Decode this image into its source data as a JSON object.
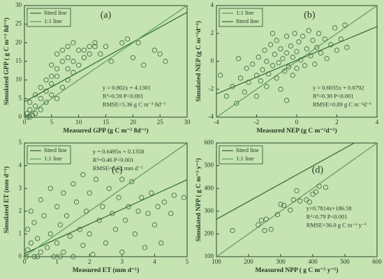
{
  "chart_data": [
    {
      "type": "scatter",
      "panel_label": "(a)",
      "xlabel": "Measured GPP (g C m⁻² 8d⁻¹)",
      "ylabel": "Simulated GPP ( g C m⁻² 8d⁻¹)",
      "xlim": [
        0,
        30
      ],
      "xticks": [
        0,
        5,
        10,
        15,
        20,
        25,
        30
      ],
      "ylim": [
        0,
        30
      ],
      "yticks": [
        0,
        5,
        10,
        15,
        20,
        25,
        30
      ],
      "point_color": "#35613a",
      "x": [
        0.5,
        1,
        1,
        1.5,
        2,
        2,
        3,
        3,
        4,
        4,
        5,
        5,
        5,
        6,
        6,
        6,
        7,
        7,
        7,
        8,
        8,
        8,
        9,
        9,
        10,
        10,
        11,
        12,
        12,
        13,
        14,
        15,
        16,
        18,
        19,
        20,
        21,
        22,
        24,
        25,
        26,
        0.5,
        1,
        2,
        3,
        4,
        5,
        6,
        8,
        9,
        11,
        13
      ],
      "values": [
        1,
        2,
        4,
        0.5,
        3,
        6,
        5,
        8,
        4,
        10,
        6,
        11,
        14,
        5,
        13,
        17,
        8,
        15,
        18,
        10,
        16,
        19,
        12,
        20,
        14,
        18,
        16,
        17,
        19,
        20,
        17,
        19,
        15,
        20,
        21,
        16,
        20,
        14,
        18,
        17,
        15,
        0,
        0,
        1,
        2,
        7,
        9,
        11,
        13,
        15,
        18,
        19
      ],
      "series": [
        {
          "name": "fitted line",
          "color": "#2c6a2c",
          "slope": 0.802,
          "intercept": 4.1301
        },
        {
          "name": "1:1 line",
          "color": "#5c9c5c"
        }
      ],
      "annotations": [
        "y = 0.802x + 4.1301",
        "R²=0.59  P<0.001",
        "RMSE=5.36 g C m⁻² 8d⁻¹"
      ]
    },
    {
      "type": "scatter",
      "panel_label": "(b)",
      "xlabel": "Measured NEP (g C m⁻²d⁻¹)",
      "ylabel": "Simulated NEP (g C m⁻²d⁻¹)",
      "xlim": [
        -4,
        4
      ],
      "xticks": [
        -4,
        -2,
        0,
        2,
        4
      ],
      "ylim": [
        -4,
        4
      ],
      "yticks": [
        -4,
        -2,
        0,
        2,
        4
      ],
      "point_color": "#35613a",
      "x": [
        -3.5,
        -3.2,
        -3,
        -2.8,
        -2.6,
        -2.5,
        -2.4,
        -2.2,
        -2,
        -2,
        -1.9,
        -1.8,
        -1.7,
        -1.6,
        -1.5,
        -1.5,
        -1.4,
        -1.3,
        -1.2,
        -1.1,
        -1,
        -1,
        -0.9,
        -0.8,
        -0.8,
        -0.7,
        -0.6,
        -0.5,
        -0.5,
        -0.4,
        -0.3,
        -0.2,
        -0.2,
        -0.1,
        0,
        0,
        0.1,
        0.2,
        0.3,
        0.4,
        0.5,
        0.6,
        0.7,
        0.8,
        0.9,
        1,
        1.1,
        1.2,
        1.4,
        1.5,
        1.7,
        1.9,
        2,
        2.2,
        2.4,
        2.5,
        -3.8,
        -2.9,
        -1.2,
        -0.5
      ],
      "values": [
        -2.5,
        -1.8,
        -3,
        -1.2,
        -2.2,
        -0.5,
        -1.5,
        -0.2,
        -1,
        -2.5,
        0.3,
        -1.4,
        -0.6,
        0.8,
        -1.8,
        0,
        -0.9,
        1.2,
        -0.3,
        0.5,
        -1.2,
        1.5,
        -0.1,
        0.9,
        -2,
        0.2,
        -0.7,
        1.8,
        0.6,
        -0.4,
        1.1,
        -1,
        0.3,
        2,
        0.7,
        -0.5,
        1.4,
        0.1,
        1.8,
        -0.3,
        0.9,
        2.2,
        0.4,
        1.5,
        -0.2,
        1,
        2,
        0.6,
        1.6,
        0.2,
        1.2,
        2.4,
        0.8,
        1.6,
        2.6,
        1,
        -1,
        0.2,
        2,
        -2.8
      ],
      "series": [
        {
          "name": "1:1 line",
          "color": "#5c9c5c"
        },
        {
          "name": "fitted line",
          "color": "#2c6a2c",
          "slope": 0.6035,
          "intercept": 0.0792
        }
      ],
      "annotations": [
        "y = 0.6035x + 0.0792",
        "R²=0.30  P<0.001",
        "RMSE=0.89 g C m⁻²d⁻¹"
      ]
    },
    {
      "type": "scatter",
      "panel_label": "(c)",
      "xlabel": "Measured ET (mm d⁻¹)",
      "ylabel": "Simulated ET (mm d⁻¹)",
      "xlim": [
        0,
        5
      ],
      "xticks": [
        0,
        1,
        2,
        3,
        4,
        5
      ],
      "ylim": [
        0,
        5
      ],
      "yticks": [
        0,
        1,
        2,
        3,
        4,
        5
      ],
      "point_color": "#35613a",
      "x": [
        0.05,
        0.1,
        0.1,
        0.2,
        0.2,
        0.3,
        0.3,
        0.4,
        0.5,
        0.5,
        0.6,
        0.7,
        0.8,
        0.8,
        0.9,
        1,
        1,
        1.1,
        1.2,
        1.2,
        1.3,
        1.4,
        1.5,
        1.5,
        1.6,
        1.7,
        1.8,
        1.8,
        1.9,
        2,
        2,
        2.1,
        2.2,
        2.3,
        2.4,
        2.5,
        2.6,
        2.7,
        2.8,
        2.9,
        3,
        3,
        3.1,
        3.2,
        3.3,
        3.4,
        3.5,
        3.6,
        3.7,
        3.8,
        3.9,
        4,
        4.1,
        4.2,
        4.3,
        4.5,
        4.6,
        4.9,
        0.4,
        1.1
      ],
      "values": [
        0,
        1.2,
        0.3,
        2,
        0.6,
        0,
        1.5,
        0.8,
        2.5,
        0.2,
        1.8,
        0.4,
        3,
        1,
        0,
        2.2,
        0.6,
        1.4,
        2.8,
        0.2,
        1.8,
        0.9,
        3.2,
        0,
        2.4,
        1.2,
        3.6,
        0.5,
        2,
        1,
        2.8,
        0.1,
        3.4,
        1.6,
        2.2,
        0.6,
        3,
        1.9,
        1.2,
        2.6,
        3.4,
        0.2,
        1.6,
        2.2,
        3.3,
        1,
        2,
        2.6,
        0.4,
        1.9,
        2.8,
        1.4,
        2.2,
        0.6,
        2.4,
        1.9,
        2.7,
        2.6,
        0,
        0
      ],
      "series": [
        {
          "name": "fitted line",
          "color": "#2c6a2c",
          "slope": 0.6495,
          "intercept": 0.1358
        },
        {
          "name": "1:1 line",
          "color": "#5c9c5c"
        }
      ],
      "annotations": [
        "y = 0.6495x + 0.1358",
        "R²=0.46  P<0.001",
        "RMSE=0.62 mm d⁻¹"
      ]
    },
    {
      "type": "scatter",
      "panel_label": "(d)",
      "xlabel": "Measured NPP ( g C m⁻² y⁻¹)",
      "ylabel": "Simulated NPP ( g C m⁻² y⁻¹)",
      "xlim": [
        100,
        600
      ],
      "xticks": [
        100,
        200,
        300,
        400,
        500,
        600
      ],
      "ylim": [
        100,
        600
      ],
      "yticks": [
        100,
        200,
        300,
        400,
        500,
        600
      ],
      "point_color": "#35613a",
      "x": [
        150,
        230,
        240,
        250,
        255,
        270,
        290,
        300,
        310,
        330,
        340,
        350,
        360,
        380,
        390,
        400,
        410,
        420,
        440
      ],
      "values": [
        215,
        240,
        260,
        215,
        265,
        220,
        285,
        330,
        325,
        305,
        350,
        390,
        345,
        350,
        340,
        375,
        385,
        410,
        405
      ],
      "series": [
        {
          "name": "fitted line",
          "color": "#2c6a2c",
          "slope": 0.7814,
          "intercept": 186.58
        },
        {
          "name": "1:1 line",
          "color": "#5c9c5c"
        }
      ],
      "annotations": [
        "y=0.7814x+186.58",
        "R²=0.79  P<0.001",
        "RMSE=36.0 g C m⁻² y⁻¹"
      ]
    }
  ]
}
